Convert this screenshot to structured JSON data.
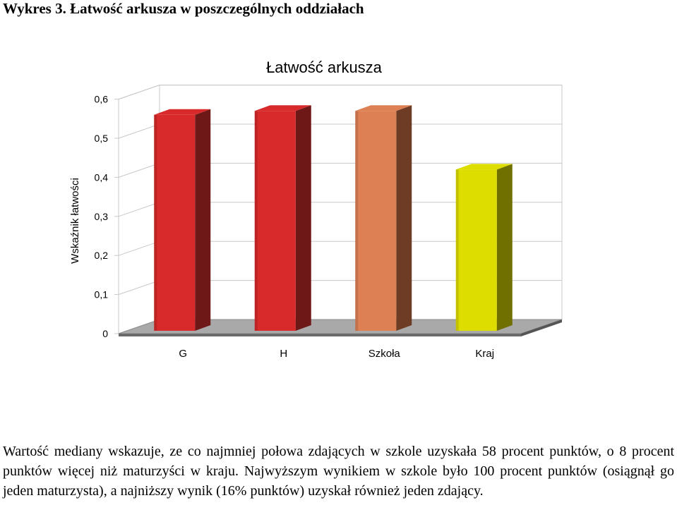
{
  "heading": "Wykres 3. Łatwość arkusza w poszczególnych oddziałach",
  "paragraph": "Wartość mediany wskazuje, ze co najmniej połowa zdających w szkole uzyskała 58 procent punktów, o 8 procent punktów więcej niż maturzyści w kraju. Najwyższym wynikiem w szkole było 100 procent punktów (osiągnął go jeden maturzysta), a najniższy wynik (16% punktów) uzyskał również jeden zdający.",
  "chart_data": {
    "type": "bar",
    "title": "Łatwość arkusza",
    "ylabel": "Wskaźnik łatwości",
    "xlabel": "",
    "ylim": [
      0,
      0.6
    ],
    "yticks": [
      "0",
      "0,1",
      "0,2",
      "0,3",
      "0,4",
      "0,5",
      "0,6"
    ],
    "categories": [
      "G",
      "H",
      "Szkoła",
      "Kraj"
    ],
    "values": [
      0.56,
      0.57,
      0.57,
      0.42
    ],
    "colors": [
      "#d82a2a",
      "#d82a2a",
      "#dd8155",
      "#dddd00"
    ],
    "side_colors": [
      "#6e1818",
      "#6e1818",
      "#6e3c24",
      "#707000"
    ],
    "grid": true,
    "legend": "none",
    "style": "3d-column"
  }
}
